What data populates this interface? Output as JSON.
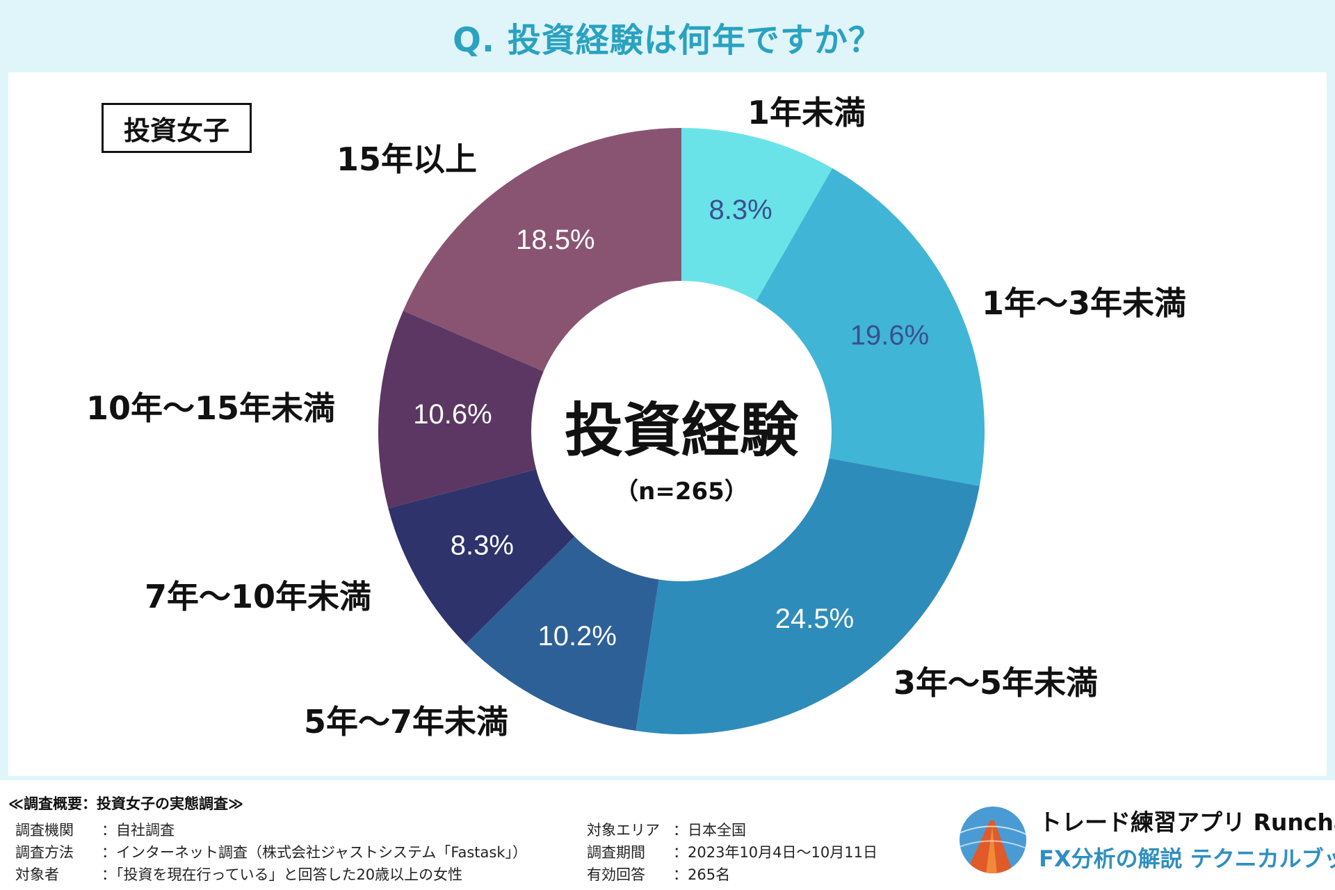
{
  "header": {
    "title": "Q. 投資経験は何年ですか？"
  },
  "badge": "投資女子",
  "chart_data": {
    "type": "pie",
    "subtype": "donut",
    "center_title": "投資経験",
    "center_sub": "（n=265）",
    "categories": [
      "1年未満",
      "1年〜3年未満",
      "3年〜5年未満",
      "5年〜7年未満",
      "7年〜10年未満",
      "10年〜15年未満",
      "15年以上"
    ],
    "values": [
      8.3,
      19.6,
      24.5,
      10.2,
      8.3,
      10.6,
      18.5
    ],
    "value_labels": [
      "8.3%",
      "19.6%",
      "24.5%",
      "10.2%",
      "8.3%",
      "10.6%",
      "18.5%"
    ],
    "colors": [
      "#6ae3e8",
      "#41b5d6",
      "#2e8cbb",
      "#2e6098",
      "#2e336b",
      "#5c3763",
      "#895472"
    ],
    "value_label_colors": [
      "#3a4f8c",
      "#3a4f8c",
      "#ffffff",
      "#ffffff",
      "#ffffff",
      "#ffffff",
      "#ffffff"
    ],
    "start": "top",
    "direction": "clockwise"
  },
  "survey": {
    "heading": "≪調査概要：投資女子の実態調査≫",
    "left": [
      {
        "key": "調査機関",
        "value": "：自社調査"
      },
      {
        "key": "調査方法",
        "value": "：インターネット調査（株式会社ジャストシステム「Fastask」）"
      },
      {
        "key": "対象者",
        "value": "：「投資を現在行っている」と回答した20歳以上の女性"
      }
    ],
    "right": [
      {
        "key": "対象エリア",
        "value": "：日本全国"
      },
      {
        "key": "調査期間",
        "value": "：2023年10月4日〜10月11日"
      },
      {
        "key": "有効回答",
        "value": "：265名"
      }
    ]
  },
  "brand": {
    "line1": "トレード練習アプリ  Runcha",
    "line2": "FX分析の解説  テクニカルブック",
    "colors": {
      "line1": "#111111",
      "line2": "#2f8fc0"
    }
  }
}
